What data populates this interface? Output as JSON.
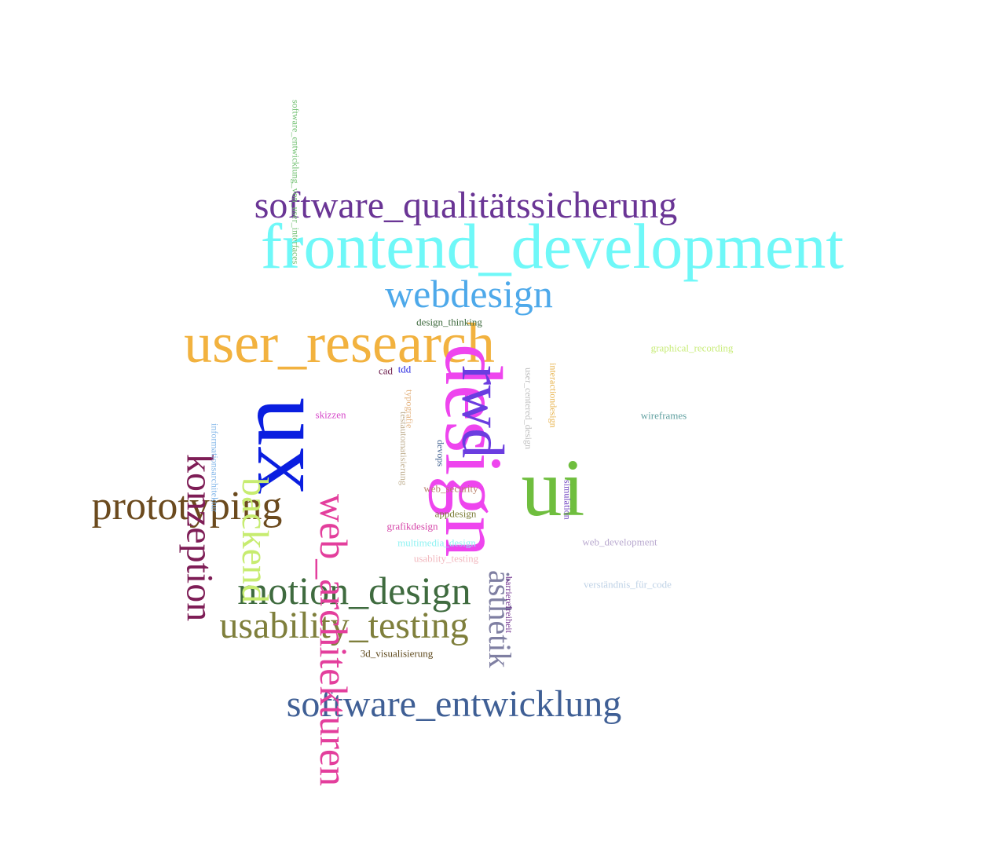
{
  "words": [
    {
      "text": "frontend_development",
      "color": "#6ff8f8"
    },
    {
      "text": "software_qualitätssicherung",
      "color": "#6a3595"
    },
    {
      "text": "webdesign",
      "color": "#4ea9ea"
    },
    {
      "text": "user_research",
      "color": "#f2b23f"
    },
    {
      "text": "design",
      "color": "#ee45ee"
    },
    {
      "text": "ux",
      "color": "#0a1ee0"
    },
    {
      "text": "rwd",
      "color": "#6b3de0"
    },
    {
      "text": "ui",
      "color": "#6fbe3e"
    },
    {
      "text": "web_architekturen",
      "color": "#e33e9c"
    },
    {
      "text": "konzeption",
      "color": "#7e1d56"
    },
    {
      "text": "backend",
      "color": "#c7ec70"
    },
    {
      "text": "prototyping",
      "color": "#6b4a1e"
    },
    {
      "text": "motion_design",
      "color": "#3f6b3f"
    },
    {
      "text": "usability_testing",
      "color": "#7f7f3c"
    },
    {
      "text": "software_entwicklung",
      "color": "#3f5f95"
    },
    {
      "text": "ästhetik",
      "color": "#7f7fa2"
    },
    {
      "text": "software_entwicklung_von_user_interfaces",
      "color": "#6fbf6f"
    },
    {
      "text": "design_thinking",
      "color": "#3f6b3f"
    },
    {
      "text": "graphical_recording",
      "color": "#c9ec7a"
    },
    {
      "text": "wireframes",
      "color": "#5f9f9f"
    },
    {
      "text": "interactiondesign",
      "color": "#e7b24a"
    },
    {
      "text": "user_centered_design",
      "color": "#bcbcbc"
    },
    {
      "text": "informationsarchitektur",
      "color": "#7fb4e8"
    },
    {
      "text": "skizzen",
      "color": "#d646c9"
    },
    {
      "text": "cad",
      "color": "#6b1a4a"
    },
    {
      "text": "tdd",
      "color": "#2a2ae0"
    },
    {
      "text": "typografie",
      "color": "#e3b27f"
    },
    {
      "text": "testautomatisierung",
      "color": "#bfae8f"
    },
    {
      "text": "devops",
      "color": "#3f5f8f"
    },
    {
      "text": "simulation",
      "color": "#6b3dbf"
    },
    {
      "text": "web_security",
      "color": "#b87f6a"
    },
    {
      "text": "appdesign",
      "color": "#7f7f3c"
    },
    {
      "text": "grafikdesign",
      "color": "#d646a9"
    },
    {
      "text": "multimedia_design",
      "color": "#8ff2f2"
    },
    {
      "text": "usablity_testing",
      "color": "#f2b9bf"
    },
    {
      "text": "web_development",
      "color": "#b9a9cf"
    },
    {
      "text": "barrierefreiheit",
      "color": "#6b2a8a"
    },
    {
      "text": "verständnis_für_code",
      "color": "#bfd2e6"
    },
    {
      "text": "3d_visualisierung",
      "color": "#5f4a1e"
    }
  ]
}
